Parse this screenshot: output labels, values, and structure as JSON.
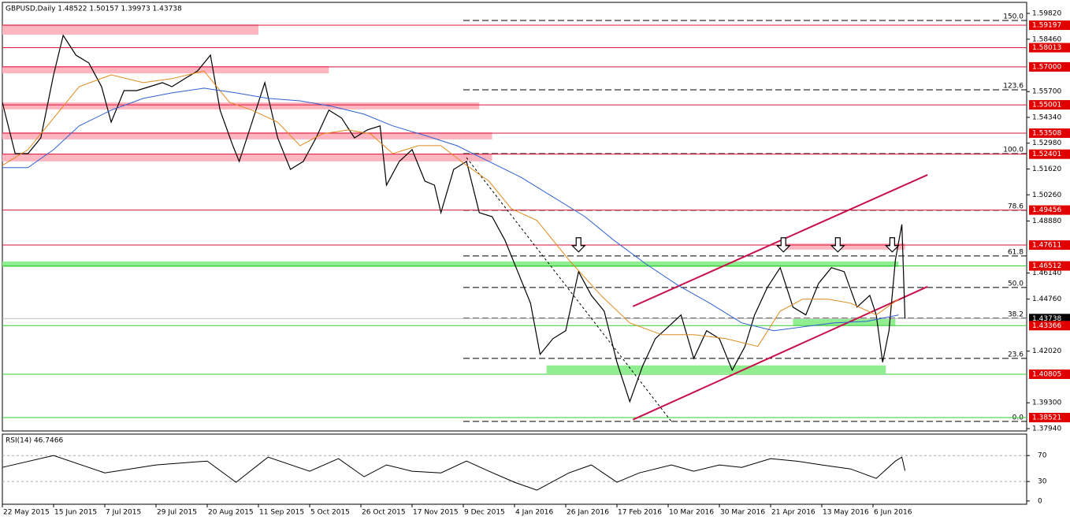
{
  "chart_data": [
    {
      "type": "line",
      "title": "GBPUSD,Daily  1.48522 1.50157 1.39973 1.43738",
      "xlim": [
        0,
        320
      ],
      "ylim": [
        1.37815,
        1.60401
      ],
      "xticks": [
        {
          "value": 0,
          "label": "22 May 2015"
        },
        {
          "value": 16,
          "label": "15 Jun 2015"
        },
        {
          "value": 32,
          "label": "7 Jul 2015"
        },
        {
          "value": 48,
          "label": "29 Jul 2015"
        },
        {
          "value": 64,
          "label": "20 Aug 2015"
        },
        {
          "value": 80,
          "label": "11 Sep 2015"
        },
        {
          "value": 96,
          "label": "5 Oct 2015"
        },
        {
          "value": 112,
          "label": "26 Oct 2015"
        },
        {
          "value": 128,
          "label": "17 Nov 2015"
        },
        {
          "value": 144,
          "label": "9 Dec 2015"
        },
        {
          "value": 160,
          "label": "4 Jan 2016"
        },
        {
          "value": 176,
          "label": "26 Jan 2016"
        },
        {
          "value": 192,
          "label": "17 Feb 2016"
        },
        {
          "value": 208,
          "label": "10 Mar 2016"
        },
        {
          "value": 224,
          "label": "30 Mar 2016"
        },
        {
          "value": 240,
          "label": "21 Apr 2016"
        },
        {
          "value": 256,
          "label": "13 May 2016"
        },
        {
          "value": 272,
          "label": "6 Jun 2016"
        }
      ],
      "yticks": [
        {
          "value": 1.5982,
          "label": "1.59820"
        },
        {
          "value": 1.5846,
          "label": "1.58460"
        },
        {
          "value": 1.557,
          "label": "1.55700"
        },
        {
          "value": 1.5434,
          "label": "1.54340"
        },
        {
          "value": 1.5298,
          "label": "1.52980"
        },
        {
          "value": 1.5162,
          "label": "1.51620"
        },
        {
          "value": 1.5026,
          "label": "1.50260"
        },
        {
          "value": 1.4888,
          "label": "1.48880"
        },
        {
          "value": 1.4614,
          "label": "1.46140"
        },
        {
          "value": 1.4476,
          "label": "1.44760"
        },
        {
          "value": 1.4202,
          "label": "1.42020"
        },
        {
          "value": 1.393,
          "label": "1.39300"
        },
        {
          "value": 1.3794,
          "label": "1.37940"
        }
      ],
      "zones": [
        {
          "x": [
            0,
            80
          ],
          "y": [
            1.587,
            1.5924
          ],
          "color": "#ffb6c1"
        },
        {
          "x": [
            0,
            102
          ],
          "y": [
            1.5666,
            1.5704
          ],
          "color": "#ffb6c1"
        },
        {
          "x": [
            0,
            149
          ],
          "y": [
            1.5476,
            1.5513
          ],
          "color": "#ffb6c1"
        },
        {
          "x": [
            0,
            153
          ],
          "y": [
            1.5318,
            1.5355
          ],
          "color": "#ffb6c1"
        },
        {
          "x": [
            0,
            153
          ],
          "y": [
            1.5202,
            1.5243
          ],
          "color": "#ffb6c1"
        },
        {
          "x": [
            244,
            282
          ],
          "y": [
            1.4737,
            1.477
          ],
          "color": "#ffb6c1"
        },
        {
          "x": [
            0,
            280
          ],
          "y": [
            1.4646,
            1.4675
          ],
          "color": "#90ee90"
        },
        {
          "x": [
            247,
            279
          ],
          "y": [
            1.4338,
            1.4372
          ],
          "color": "#90ee90"
        },
        {
          "x": [
            170,
            276
          ],
          "y": [
            1.4085,
            1.4127
          ],
          "color": "#90ee90"
        }
      ],
      "levels": [
        {
          "value": 1.59197,
          "color": "#dc143c",
          "box": "#e00000"
        },
        {
          "value": 1.58013,
          "color": "#dc143c",
          "box": "#e00000"
        },
        {
          "value": 1.57,
          "label": "1.57000",
          "color": "#dc143c",
          "box": "#e00000"
        },
        {
          "value": 1.55001,
          "color": "#dc143c",
          "box": "#e00000"
        },
        {
          "value": 1.53508,
          "color": "#dc143c",
          "box": "#e00000"
        },
        {
          "value": 1.52401,
          "color": "#dc143c",
          "box": "#e00000"
        },
        {
          "value": 1.49456,
          "color": "#dc143c",
          "box": "#e00000"
        },
        {
          "value": 1.47611,
          "color": "#dc143c",
          "box": "#e00000"
        },
        {
          "value": 1.46512,
          "color": "#32cd32",
          "box": "#e00000"
        },
        {
          "value": 1.43738,
          "color": "#c0c0c0",
          "box": "#000000"
        },
        {
          "value": 1.43366,
          "color": "#32cd32",
          "box": "#e00000"
        },
        {
          "value": 1.40805,
          "color": "#32cd32",
          "box": "#e00000"
        },
        {
          "value": 1.38521,
          "color": "#32cd32",
          "box": "#e00000"
        }
      ],
      "fibo": {
        "x_start": 144,
        "levels": [
          {
            "ratio": "150.0",
            "price": 1.59446
          },
          {
            "ratio": "123.6",
            "price": 1.55794
          },
          {
            "ratio": "100.0",
            "price": 1.52431
          },
          {
            "ratio": "78.6",
            "price": 1.49443
          },
          {
            "ratio": "61.8",
            "price": 1.47036
          },
          {
            "ratio": "50.0",
            "price": 1.45376
          },
          {
            "ratio": "38.2",
            "price": 1.43757
          },
          {
            "ratio": "23.6",
            "price": 1.41641
          },
          {
            "ratio": "0.0",
            "price": 1.3832
          }
        ]
      },
      "trendlines": [
        {
          "x": [
            197,
            289
          ],
          "y": [
            1.4438,
            1.5131
          ],
          "color": "#c8104a",
          "dashed": false
        },
        {
          "x": [
            197,
            289
          ],
          "y": [
            1.3841,
            1.4542
          ],
          "color": "#c8104a",
          "dashed": false
        },
        {
          "x": [
            145,
            209
          ],
          "y": [
            1.5222,
            1.3832
          ],
          "color": "#000000",
          "dashed": true
        }
      ],
      "markers": [
        {
          "x": 180,
          "y": 1.4725
        },
        {
          "x": 244,
          "y": 1.4725
        },
        {
          "x": 261,
          "y": 1.4725
        },
        {
          "x": 278,
          "y": 1.4725
        }
      ],
      "series": [
        {
          "color": "#000000",
          "width": 1.2,
          "x": [
            0,
            4,
            8,
            12,
            16,
            19,
            23,
            27,
            31,
            34,
            38,
            42,
            46,
            50,
            53,
            57,
            61,
            65,
            68,
            72,
            74,
            78,
            82,
            86,
            90,
            94,
            98,
            102,
            106,
            110,
            114,
            118,
            120,
            124,
            128,
            132,
            135,
            137,
            141,
            145,
            149,
            153,
            157,
            161,
            165,
            168,
            172,
            176,
            180,
            184,
            188,
            192,
            196,
            200,
            204,
            208,
            212,
            216,
            220,
            224,
            228,
            232,
            235,
            239,
            243,
            247,
            251,
            255,
            259,
            263,
            267,
            271,
            273,
            275,
            277,
            279,
            281,
            282
          ],
          "values": [
            1.5513,
            1.5243,
            1.5243,
            1.5326,
            1.5658,
            1.5866,
            1.5762,
            1.5721,
            1.5596,
            1.5409,
            1.5575,
            1.5575,
            1.5596,
            1.5617,
            1.5596,
            1.5638,
            1.5679,
            1.5762,
            1.5472,
            1.5285,
            1.5202,
            1.5409,
            1.5617,
            1.5326,
            1.516,
            1.5202,
            1.5326,
            1.5472,
            1.543,
            1.5326,
            1.5368,
            1.5389,
            1.5077,
            1.5202,
            1.5264,
            1.5098,
            1.5077,
            1.4932,
            1.516,
            1.5202,
            1.4932,
            1.4911,
            1.4787,
            1.4621,
            1.4455,
            1.4185,
            1.4268,
            1.431,
            1.4621,
            1.4496,
            1.4413,
            1.4144,
            1.3936,
            1.4123,
            1.4268,
            1.433,
            1.4393,
            1.4164,
            1.431,
            1.4268,
            1.4102,
            1.4227,
            1.4393,
            1.4538,
            1.4642,
            1.4434,
            1.4393,
            1.4559,
            1.4642,
            1.4621,
            1.4434,
            1.4496,
            1.4393,
            1.4144,
            1.431,
            1.4683,
            1.487,
            1.43738
          ]
        },
        {
          "color": "#e08a1e",
          "width": 1,
          "x": [
            0,
            8,
            16,
            24,
            34,
            44,
            53,
            63,
            71,
            78,
            86,
            93,
            100,
            108,
            115,
            122,
            130,
            137,
            145,
            152,
            159,
            167,
            177,
            187,
            196,
            206,
            216,
            226,
            236,
            243,
            250,
            258,
            265,
            273,
            280
          ],
          "values": [
            1.5181,
            1.5264,
            1.543,
            1.5596,
            1.5658,
            1.5617,
            1.5638,
            1.5679,
            1.5513,
            1.5472,
            1.5409,
            1.5285,
            1.5347,
            1.5368,
            1.5347,
            1.5243,
            1.5285,
            1.5285,
            1.5181,
            1.5098,
            1.4953,
            1.4891,
            1.4683,
            1.4496,
            1.4351,
            1.4289,
            1.4289,
            1.4268,
            1.4227,
            1.4413,
            1.4476,
            1.4476,
            1.4455,
            1.4393,
            1.4476
          ]
        },
        {
          "color": "#3060d0",
          "width": 1,
          "x": [
            0,
            8,
            16,
            24,
            34,
            44,
            53,
            63,
            73,
            83,
            93,
            103,
            113,
            122,
            132,
            142,
            152,
            162,
            172,
            182,
            191,
            201,
            211,
            221,
            231,
            241,
            250,
            260,
            270,
            280
          ],
          "values": [
            1.5169,
            1.5169,
            1.5264,
            1.5389,
            1.5472,
            1.5534,
            1.5563,
            1.5588,
            1.5563,
            1.5534,
            1.5521,
            1.5492,
            1.5451,
            1.5389,
            1.5339,
            1.5285,
            1.5202,
            1.5119,
            1.5015,
            1.4911,
            1.4787,
            1.4662,
            1.455,
            1.4455,
            1.4351,
            1.431,
            1.433,
            1.4351,
            1.4359,
            1.4393
          ]
        }
      ]
    },
    {
      "type": "rsi",
      "title": "RSI(14) 46.7466",
      "xlim": [
        0,
        320
      ],
      "ylim": [
        -5,
        103
      ],
      "yticks": [
        70,
        30,
        0
      ],
      "levels": [
        70,
        30
      ],
      "series": [
        {
          "color": "#000000",
          "width": 1,
          "x": [
            0,
            16,
            32,
            48,
            64,
            73,
            83,
            96,
            105,
            113,
            120,
            128,
            137,
            145,
            152,
            160,
            167,
            177,
            184,
            192,
            199,
            209,
            216,
            224,
            231,
            240,
            248,
            256,
            265,
            273,
            279,
            281,
            282
          ],
          "values": [
            51.8,
            70,
            43.3,
            55.5,
            61.5,
            28.8,
            67.6,
            45.8,
            65.2,
            37.3,
            55.5,
            45.8,
            43.3,
            61.5,
            45.8,
            28.8,
            16.7,
            43.3,
            55.5,
            28.8,
            43.3,
            55.5,
            45.8,
            55.5,
            51.8,
            65.2,
            61.5,
            55.5,
            49.4,
            34.8,
            61.5,
            67.6,
            46.7466
          ]
        }
      ]
    }
  ]
}
